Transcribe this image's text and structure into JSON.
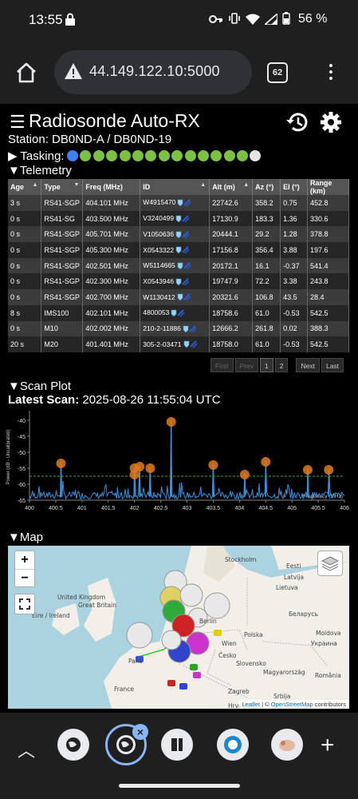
{
  "status_bar": {
    "time": "13:55",
    "battery": "56 %"
  },
  "browser": {
    "url": "44.149.122.10:5000",
    "tab_count": "62"
  },
  "app": {
    "title": "Radiosonde Auto-RX",
    "station": "Station: DB0ND-A / DB0ND-19",
    "tasking_label": "▶ Tasking:",
    "tasking_dots": [
      "#3b82f6",
      "#7cc242",
      "#7cc242",
      "#7cc242",
      "#7cc242",
      "#7cc242",
      "#7cc242",
      "#7cc242",
      "#7cc242",
      "#7cc242",
      "#7cc242",
      "#7cc242",
      "#7cc242",
      "#7cc242",
      "#e5e5e5"
    ],
    "telemetry_label": "▼Telemetry",
    "scan_label": "▼Scan Plot",
    "latest_scan_prefix": "Latest Scan:",
    "latest_scan_value": "2025-08-26 11:55:04 UTC",
    "map_label": "▼Map"
  },
  "table": {
    "headers": [
      "Age",
      "Type",
      "Freq (MHz)",
      "ID",
      "Alt (m)",
      "Az (°)",
      "El (°)",
      "Range (km)"
    ],
    "rows": [
      [
        "3 s",
        "RS41-SGP",
        "404.101 MHz",
        "W4915470",
        "22742.6",
        "358.2",
        "0.75",
        "452.8"
      ],
      [
        "0 s",
        "RS41-SG",
        "403.500 MHz",
        "V3240499",
        "17130.9",
        "183.3",
        "1.36",
        "330.6"
      ],
      [
        "0 s",
        "RS41-SGP",
        "405.701 MHz",
        "V1050636",
        "20444.1",
        "29.2",
        "1.28",
        "378.8"
      ],
      [
        "0 s",
        "RS41-SGP",
        "405.300 MHz",
        "X0543322",
        "17156.8",
        "356.4",
        "3.88",
        "197.6"
      ],
      [
        "0 s",
        "RS41-SGP",
        "402.501 MHz",
        "W5114665",
        "20172.1",
        "16.1",
        "-0.37",
        "541.4"
      ],
      [
        "0 s",
        "RS41-SGP",
        "402.300 MHz",
        "X0543946",
        "19747.9",
        "72.2",
        "3.38",
        "243.8"
      ],
      [
        "0 s",
        "RS41-SGP",
        "402.700 MHz",
        "W1130412",
        "20321.6",
        "106.8",
        "43.5",
        "28.4"
      ],
      [
        "8 s",
        "IMS100",
        "402.101 MHz",
        "4800053",
        "18758.6",
        "61.0",
        "-0.53",
        "542.5"
      ],
      [
        "0 s",
        "M10",
        "402.002 MHz",
        "210-2-11886",
        "12666.2",
        "261.8",
        "0.02",
        "388.3"
      ],
      [
        "20 s",
        "M20",
        "401.401 MHz",
        "305-2-03471",
        "18758.0",
        "61.0",
        "-0.53",
        "542.5"
      ]
    ],
    "pager": [
      "First",
      "Prev",
      "1",
      "2",
      "Next",
      "Last"
    ]
  },
  "chart_data": {
    "type": "line",
    "title": "",
    "xlabel": "Frequency (MHz)",
    "ylabel": "Power (dB - Uncalibrated)",
    "xlim": [
      400,
      406
    ],
    "ylim": [
      -65,
      -38
    ],
    "x_ticks": [
      "400",
      "400.5",
      "401",
      "401.5",
      "402",
      "402.5",
      "403",
      "403.5",
      "404",
      "404.5",
      "405",
      "405.5",
      "406"
    ],
    "y_ticks": [
      "-40",
      "-45",
      "-50",
      "-55",
      "-60",
      "-65"
    ],
    "threshold_db": -57.5,
    "noise_floor_db": -64,
    "peaks": [
      {
        "x": 400.6,
        "y": -53.5
      },
      {
        "x": 402.0,
        "y": -57.0
      },
      {
        "x": 402.0,
        "y": -55.0
      },
      {
        "x": 402.1,
        "y": -54.5
      },
      {
        "x": 402.3,
        "y": -55.0
      },
      {
        "x": 402.7,
        "y": -40.5
      },
      {
        "x": 403.5,
        "y": -54.0
      },
      {
        "x": 404.1,
        "y": -57.0
      },
      {
        "x": 404.5,
        "y": -53.0
      },
      {
        "x": 405.3,
        "y": -55.5
      },
      {
        "x": 405.7,
        "y": -55.5
      }
    ]
  },
  "map": {
    "labels": [
      "Stockholm",
      "Eesti",
      "Latvija",
      "Lietuva",
      "United Kingdom",
      "Great Britain",
      "Éire / Ireland",
      "Беларусь",
      "Polska",
      "France",
      "Česko",
      "Slovensko",
      "Magyarország",
      "România",
      "Zagreb",
      "Hrvatska",
      "Srbija",
      "Moldova",
      "Украина",
      "Berlin",
      "Paris",
      "Wien"
    ],
    "attribution_leaflet": "Leaflet",
    "attribution_sep": " | © ",
    "attribution_osm": "OpenStreetMap",
    "attribution_tail": " contributors"
  }
}
